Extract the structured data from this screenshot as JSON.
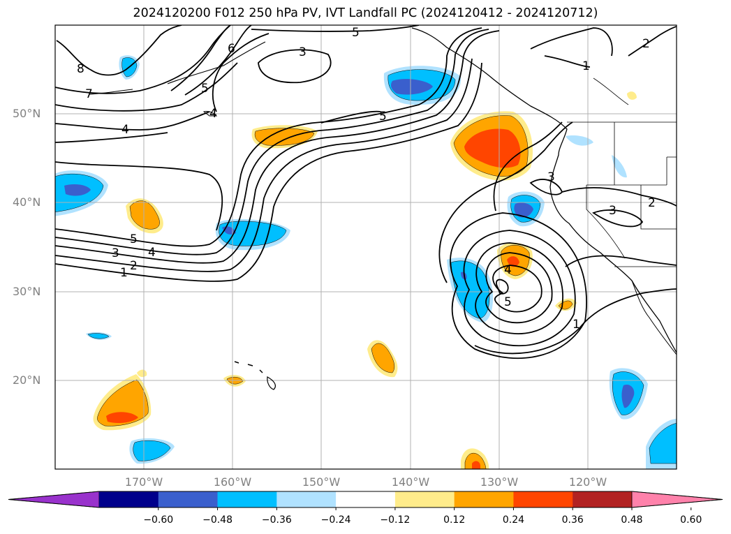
{
  "title": "2024120200 F012 250 hPa PV, IVT Landfall PC (2024120412 - 2024120712)",
  "axes": {
    "lat_labels": [
      "50°N",
      "40°N",
      "30°N",
      "20°N"
    ],
    "lon_labels": [
      "170°W",
      "160°W",
      "150°W",
      "140°W",
      "130°W",
      "120°W"
    ]
  },
  "contour_labels": [
    "5",
    "6",
    "3",
    "8",
    "5",
    "7",
    "4",
    "4",
    "5",
    "5",
    "4",
    "3",
    "2",
    "1",
    "3",
    "3",
    "2",
    "4",
    "5",
    "1",
    "1",
    "2"
  ],
  "colorbar": {
    "ticks": [
      "−0.60",
      "−0.48",
      "−0.36",
      "−0.24",
      "−0.12",
      "0.12",
      "0.24",
      "0.36",
      "0.48",
      "0.60"
    ],
    "colors": [
      "#9932cc",
      "#00008b",
      "#3a5fcd",
      "#00bfff",
      "#b0e2ff",
      "#ffffff",
      "#ffec8b",
      "#ffa500",
      "#ff4500",
      "#b22222",
      "#ff82ab"
    ]
  }
}
